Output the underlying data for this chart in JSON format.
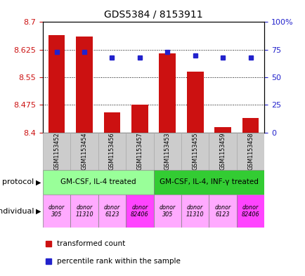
{
  "title": "GDS5384 / 8153911",
  "samples": [
    "GSM1153452",
    "GSM1153454",
    "GSM1153456",
    "GSM1153457",
    "GSM1153453",
    "GSM1153455",
    "GSM1153459",
    "GSM1153458"
  ],
  "bar_values": [
    8.665,
    8.66,
    8.455,
    8.475,
    8.615,
    8.565,
    8.415,
    8.44
  ],
  "percentile_values": [
    73,
    73,
    68,
    68,
    73,
    70,
    68,
    68
  ],
  "ymin": 8.4,
  "ymax": 8.7,
  "yticks": [
    8.4,
    8.475,
    8.55,
    8.625,
    8.7
  ],
  "ytick_labels": [
    "8.4",
    "8.475",
    "8.55",
    "8.625",
    "8.7"
  ],
  "y2min": 0,
  "y2max": 100,
  "y2ticks": [
    0,
    25,
    50,
    75,
    100
  ],
  "y2tick_labels": [
    "0",
    "25",
    "50",
    "75",
    "100%"
  ],
  "bar_color": "#cc1111",
  "dot_color": "#2222cc",
  "left_tick_color": "#cc1111",
  "right_tick_color": "#2222cc",
  "protocol_labels": [
    "GM-CSF, IL-4 treated",
    "GM-CSF, IL-4, INF-γ treated"
  ],
  "protocol_bg_color": "#99ff99",
  "protocol_bg_color2": "#33cc33",
  "individual_bg_colors": [
    "#ffaaff",
    "#ffaaff",
    "#ffaaff",
    "#ff44ff",
    "#ffaaff",
    "#ffaaff",
    "#ffaaff",
    "#ff44ff"
  ],
  "indiv_labels": [
    "donor\n305",
    "donor\n11310",
    "donor\n6123",
    "donor\n82406",
    "donor\n305",
    "donor\n11310",
    "donor\n6123",
    "donor\n82406"
  ],
  "legend_red_label": "transformed count",
  "legend_blue_label": "percentile rank within the sample",
  "background_color": "#ffffff",
  "sample_bg_color": "#cccccc",
  "sample_edge_color": "#aaaaaa"
}
